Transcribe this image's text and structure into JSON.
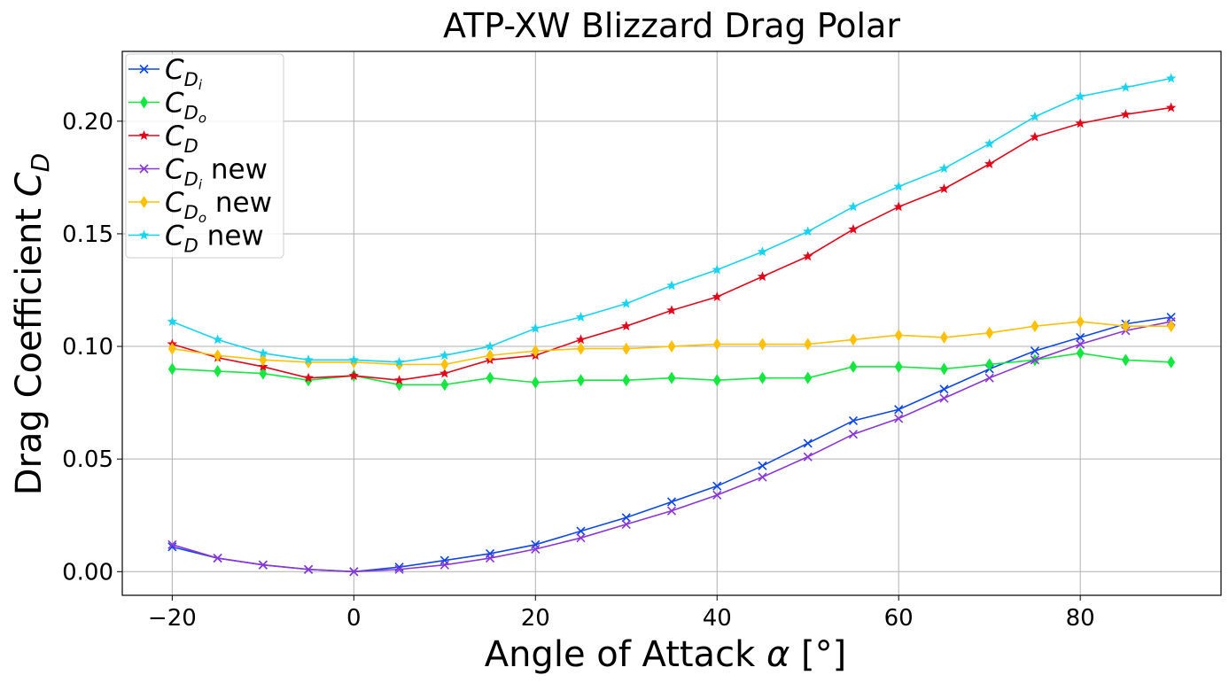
{
  "chart_data": {
    "type": "line",
    "title": "ATP-XW Blizzard Drag Polar",
    "xlabel": "Angle of Attack α [°]",
    "ylabel": "Drag Coefficient C_D",
    "xlim": [
      -25.5,
      95.5
    ],
    "ylim": [
      -0.0105,
      0.231
    ],
    "grid": true,
    "legend_position": "top-left",
    "x_ticks": [
      -20,
      0,
      20,
      40,
      60,
      80
    ],
    "x_tick_labels": [
      "−20",
      "0",
      "20",
      "40",
      "60",
      "80"
    ],
    "y_ticks": [
      0.0,
      0.05,
      0.1,
      0.15,
      0.2
    ],
    "y_tick_labels": [
      "0.00",
      "0.05",
      "0.10",
      "0.15",
      "0.20"
    ],
    "x": [
      -20,
      -15,
      -10,
      -5,
      0,
      5,
      10,
      15,
      20,
      25,
      30,
      35,
      40,
      45,
      50,
      55,
      60,
      65,
      70,
      75,
      80,
      85,
      90
    ],
    "series": [
      {
        "name": "C_Di",
        "legend": {
          "main": "C",
          "sub": "D",
          "subsub": "i",
          "suffix": ""
        },
        "color": "#0d47e8",
        "marker": "x",
        "values": [
          0.011,
          0.006,
          0.003,
          0.001,
          0.0,
          0.002,
          0.005,
          0.008,
          0.012,
          0.018,
          0.024,
          0.031,
          0.038,
          0.047,
          0.057,
          0.067,
          0.072,
          0.081,
          0.09,
          0.098,
          0.104,
          0.11,
          0.113
        ]
      },
      {
        "name": "C_Do",
        "legend": {
          "main": "C",
          "sub": "D",
          "subsub": "o",
          "suffix": ""
        },
        "color": "#14e840",
        "marker": "diamond",
        "values": [
          0.09,
          0.089,
          0.088,
          0.085,
          0.087,
          0.083,
          0.083,
          0.086,
          0.084,
          0.085,
          0.085,
          0.086,
          0.085,
          0.086,
          0.086,
          0.091,
          0.091,
          0.09,
          0.092,
          0.094,
          0.097,
          0.094,
          0.093
        ]
      },
      {
        "name": "C_D",
        "legend": {
          "main": "C",
          "sub": "D",
          "subsub": "",
          "suffix": ""
        },
        "color": "#e3061b",
        "marker": "star",
        "values": [
          0.101,
          0.095,
          0.091,
          0.086,
          0.087,
          0.085,
          0.088,
          0.094,
          0.096,
          0.103,
          0.109,
          0.116,
          0.122,
          0.131,
          0.14,
          0.152,
          0.162,
          0.17,
          0.181,
          0.193,
          0.199,
          0.203,
          0.206
        ]
      },
      {
        "name": "C_Di new",
        "legend": {
          "main": "C",
          "sub": "D",
          "subsub": "i",
          "suffix": " new"
        },
        "color": "#8a36d8",
        "marker": "x",
        "values": [
          0.012,
          0.006,
          0.003,
          0.001,
          0.0,
          0.001,
          0.003,
          0.006,
          0.01,
          0.015,
          0.021,
          0.027,
          0.034,
          0.042,
          0.051,
          0.061,
          0.068,
          0.077,
          0.086,
          0.094,
          0.101,
          0.107,
          0.111
        ]
      },
      {
        "name": "C_Do new",
        "legend": {
          "main": "C",
          "sub": "D",
          "subsub": "o",
          "suffix": " new"
        },
        "color": "#ffc107",
        "marker": "diamond",
        "values": [
          0.099,
          0.096,
          0.094,
          0.093,
          0.093,
          0.092,
          0.092,
          0.096,
          0.098,
          0.099,
          0.099,
          0.1,
          0.101,
          0.101,
          0.101,
          0.103,
          0.105,
          0.104,
          0.106,
          0.109,
          0.111,
          0.109,
          0.109
        ]
      },
      {
        "name": "C_D new",
        "legend": {
          "main": "C",
          "sub": "D",
          "subsub": "",
          "suffix": " new"
        },
        "color": "#18d4f0",
        "marker": "star",
        "values": [
          0.111,
          0.103,
          0.097,
          0.094,
          0.094,
          0.093,
          0.096,
          0.1,
          0.108,
          0.113,
          0.119,
          0.127,
          0.134,
          0.142,
          0.151,
          0.162,
          0.171,
          0.179,
          0.19,
          0.202,
          0.211,
          0.215,
          0.219
        ]
      }
    ]
  }
}
